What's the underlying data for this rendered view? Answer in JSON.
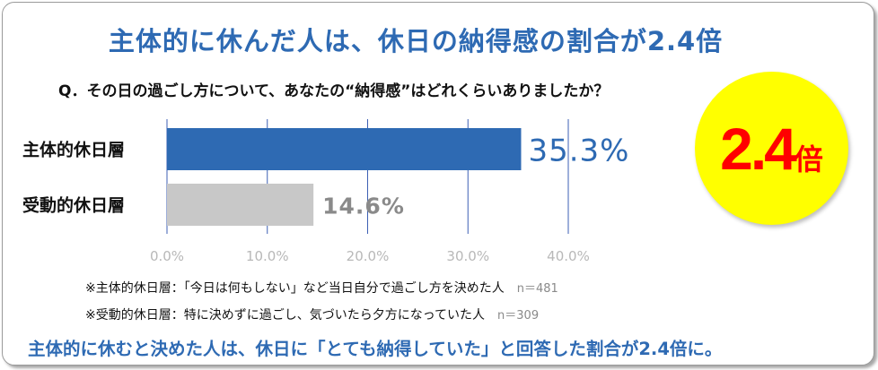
{
  "title": "主体的に休んだ人は、休日の納得感の割合が2.4倍",
  "question": "Q．その日の過ごし方について、あなたの“納得感”はどれくらいありましたか？",
  "badge": {
    "number": "2.4",
    "unit": "倍"
  },
  "notes": [
    {
      "text": "※主体的休日層：「今日は何もしない」など当日自分で過ごし方を決めた人",
      "n": "n＝481"
    },
    {
      "text": "※受動的休日層：特に決めずに過ごし、気づいたら夕方になっていた人",
      "n": "n＝309"
    }
  ],
  "footer": "主体的に休むと決めた人は、休日に「とても納得していた」と回答した割合が2.4倍に。",
  "colors": {
    "title": "#2e6ab3",
    "bar_primary": "#2e6ab3",
    "bar_secondary": "#c8c8c8",
    "label_primary": "#2e6ab3",
    "label_secondary": "#8a8a8a",
    "grid": "#3c5fb4",
    "badge_bg": "#ffff00",
    "badge_text": "#ff0000"
  },
  "chart_data": {
    "type": "bar",
    "orientation": "horizontal",
    "categories": [
      "主体的休日層",
      "受動的休日層"
    ],
    "values": [
      35.3,
      14.6
    ],
    "value_labels": [
      "35.3%",
      "14.6%"
    ],
    "xticks": [
      "0.0%",
      "10.0%",
      "20.0%",
      "30.0%",
      "40.0%"
    ],
    "xlim": [
      0,
      40
    ],
    "grid": true
  }
}
